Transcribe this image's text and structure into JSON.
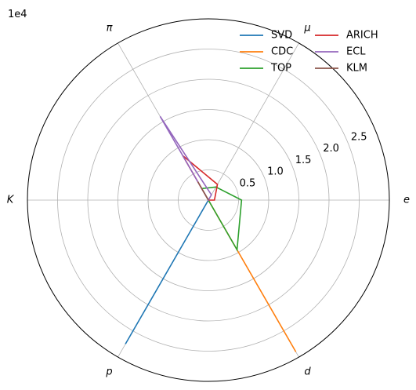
{
  "chart_data": {
    "type": "radar",
    "title": "",
    "scale_label": "1e4",
    "axes": [
      "e",
      "μ",
      "π",
      "K",
      "p",
      "d"
    ],
    "rlim": [
      0,
      30000
    ],
    "rticks": [
      5000,
      10000,
      15000,
      20000,
      25000
    ],
    "rtick_labels": [
      "0.5",
      "1.0",
      "1.5",
      "2.0",
      "2.5"
    ],
    "grid": true,
    "legend_position": "top-right",
    "legend_columns": 2,
    "series": [
      {
        "name": "SVD",
        "color": "#1f77b4",
        "values": [
          0,
          0,
          0,
          0,
          27500,
          0
        ]
      },
      {
        "name": "CDC",
        "color": "#ff7f0e",
        "values": [
          0,
          0,
          0,
          0,
          0,
          29000
        ]
      },
      {
        "name": "TOP",
        "color": "#2ca02c",
        "values": [
          5500,
          2500,
          2200,
          0,
          0,
          9500
        ]
      },
      {
        "name": "ARICH",
        "color": "#d62728",
        "values": [
          1000,
          3000,
          8500,
          0,
          0,
          0
        ]
      },
      {
        "name": "ECL",
        "color": "#9467bd",
        "values": [
          0,
          1000,
          16000,
          0,
          0,
          0
        ]
      },
      {
        "name": "KLM",
        "color": "#8c564b",
        "values": [
          0,
          0,
          3500,
          0,
          0,
          0
        ]
      }
    ]
  }
}
